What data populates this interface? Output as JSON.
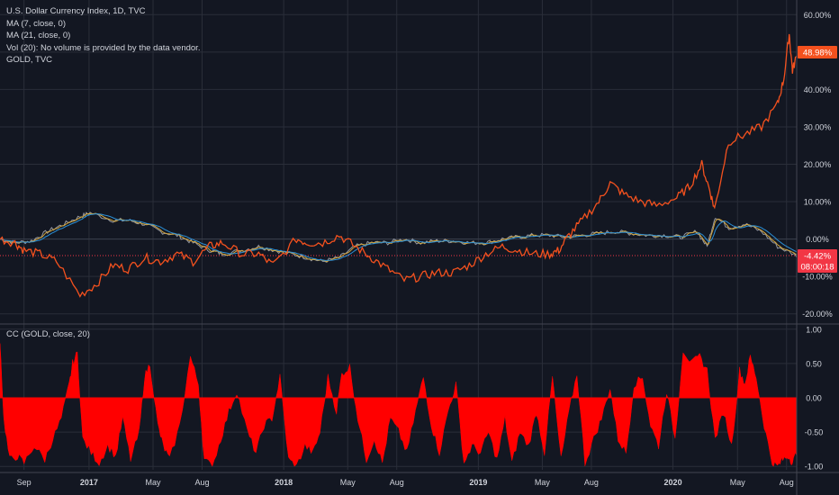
{
  "legend": {
    "symbol": "U.S. Dollar Currency Index, 1D, TVC",
    "ma7": "MA (7, close, 0)",
    "ma21": "MA (21, close, 0)",
    "vol": "Vol (20): No volume is provided by the data vendor.",
    "compare": "GOLD, TVC"
  },
  "cc_legend": "CC (GOLD, close, 20)",
  "colors": {
    "background": "#131722",
    "gold_line": "#f4511e",
    "dxy_line": "#9598a1",
    "ma7": "#d4a63a",
    "ma21": "#2b8fd6",
    "cc_fill": "#ff0000",
    "badge_gold": "#f4511e",
    "badge_dxy": "#f23645",
    "axis_text": "#d1d4dc",
    "grid": "#2a2e39"
  },
  "badges": {
    "gold_value": "48.98%",
    "dxy_value": "-4.42%",
    "countdown": "08:00:18"
  },
  "chart_data": [
    {
      "type": "line",
      "title": "U.S. Dollar Currency Index, 1D, TVC",
      "y_unit": "percent",
      "ylim": [
        -22,
        62
      ],
      "y_ticks": [
        "60.00%",
        "50.00%",
        "40.00%",
        "30.00%",
        "20.00%",
        "10.00%",
        "0.00%",
        "-10.00%",
        "-20.00%"
      ],
      "x_ticks": [
        "Sep",
        "2017",
        "May",
        "Aug",
        "2018",
        "May",
        "Aug",
        "2019",
        "May",
        "Aug",
        "2020",
        "May",
        "Aug"
      ],
      "x_range": [
        "2016-07-18",
        "2020-08-20"
      ],
      "grid": true,
      "last_values": {
        "GOLD": 48.98,
        "DXY": -4.42
      },
      "series": [
        {
          "name": "GOLD, TVC",
          "x": [
            "2016-07-18",
            "2016-08-15",
            "2016-09-01",
            "2016-10-01",
            "2016-11-01",
            "2016-12-15",
            "2017-01-15",
            "2017-02-15",
            "2017-03-15",
            "2017-04-15",
            "2017-05-15",
            "2017-06-15",
            "2017-07-15",
            "2017-08-15",
            "2017-09-08",
            "2017-10-15",
            "2017-11-15",
            "2017-12-12",
            "2018-01-25",
            "2018-02-15",
            "2018-03-15",
            "2018-04-15",
            "2018-05-15",
            "2018-06-15",
            "2018-07-15",
            "2018-08-15",
            "2018-09-15",
            "2018-10-15",
            "2018-11-15",
            "2018-12-15",
            "2019-01-15",
            "2019-02-15",
            "2019-03-15",
            "2019-04-15",
            "2019-05-15",
            "2019-06-01",
            "2019-06-20",
            "2019-07-15",
            "2019-08-15",
            "2019-09-05",
            "2019-10-01",
            "2019-11-01",
            "2019-12-01",
            "2020-01-08",
            "2020-02-01",
            "2020-02-24",
            "2020-03-10",
            "2020-03-19",
            "2020-04-14",
            "2020-05-15",
            "2020-06-15",
            "2020-07-15",
            "2020-07-27",
            "2020-08-06",
            "2020-08-12",
            "2020-08-20"
          ],
          "values": [
            0,
            -1,
            -3,
            -4,
            -6,
            -15,
            -12,
            -7,
            -8,
            -5,
            -6,
            -4,
            -6,
            -2,
            -1,
            -4,
            -4,
            -7,
            0,
            -1,
            -1,
            1,
            -2,
            -5,
            -8,
            -11,
            -10,
            -9,
            -9,
            -7,
            -4,
            -2,
            -3,
            -4,
            -4,
            -3,
            1,
            5,
            10,
            15,
            12,
            10,
            9,
            11,
            14,
            20,
            13,
            8,
            26,
            28,
            30,
            36,
            43,
            55,
            45,
            49
          ]
        },
        {
          "name": "U.S. Dollar Currency Index",
          "x": [
            "2016-07-18",
            "2016-08-15",
            "2016-09-15",
            "2016-10-15",
            "2016-11-15",
            "2016-12-15",
            "2017-01-03",
            "2017-02-15",
            "2017-03-15",
            "2017-04-15",
            "2017-05-15",
            "2017-06-15",
            "2017-07-15",
            "2017-08-15",
            "2017-09-08",
            "2017-10-15",
            "2017-11-15",
            "2017-12-15",
            "2018-01-15",
            "2018-02-15",
            "2018-03-15",
            "2018-04-15",
            "2018-05-15",
            "2018-06-15",
            "2018-07-15",
            "2018-08-15",
            "2018-09-15",
            "2018-10-15",
            "2018-11-15",
            "2018-12-15",
            "2019-01-15",
            "2019-02-15",
            "2019-03-15",
            "2019-04-15",
            "2019-05-15",
            "2019-06-15",
            "2019-07-15",
            "2019-08-15",
            "2019-09-15",
            "2019-10-15",
            "2019-11-15",
            "2019-12-15",
            "2020-01-15",
            "2020-02-15",
            "2020-03-05",
            "2020-03-20",
            "2020-04-15",
            "2020-05-15",
            "2020-06-15",
            "2020-07-15",
            "2020-08-20"
          ],
          "values": [
            0,
            -1,
            -0.5,
            2,
            4,
            6,
            7,
            5,
            5,
            4,
            2,
            1,
            -1,
            -3,
            -4,
            -3,
            -2,
            -3,
            -4,
            -5,
            -6,
            -5,
            -2,
            -1,
            -1,
            0,
            -1,
            -0.5,
            -0.5,
            -1,
            -1,
            0,
            0.5,
            1,
            1,
            0.5,
            1,
            1.5,
            2,
            1.5,
            1,
            1,
            0.5,
            2,
            -2,
            6,
            3,
            4,
            2,
            -2,
            -4.42
          ]
        }
      ]
    },
    {
      "type": "area",
      "title": "CC (GOLD, close, 20)",
      "ylim": [
        -1.05,
        1.05
      ],
      "y_ticks": [
        "1.00",
        "0.50",
        "0.00",
        "-0.50",
        "-1.00"
      ],
      "series": [
        {
          "name": "CC (GOLD, close, 20)",
          "x": [
            "2016-07-18",
            "2016-07-25",
            "2016-08-05",
            "2016-08-20",
            "2016-09-01",
            "2016-09-20",
            "2016-10-10",
            "2016-10-25",
            "2016-11-10",
            "2016-11-25",
            "2016-12-01",
            "2016-12-10",
            "2016-12-20",
            "2017-01-05",
            "2017-01-20",
            "2017-02-05",
            "2017-02-20",
            "2017-03-05",
            "2017-03-20",
            "2017-04-05",
            "2017-04-15",
            "2017-04-25",
            "2017-05-10",
            "2017-05-20",
            "2017-06-01",
            "2017-06-20",
            "2017-07-10",
            "2017-07-25",
            "2017-08-05",
            "2017-08-20",
            "2017-09-05",
            "2017-09-20",
            "2017-10-05",
            "2017-10-25",
            "2017-11-10",
            "2017-11-25",
            "2017-12-10",
            "2017-12-25",
            "2018-01-10",
            "2018-01-25",
            "2018-02-10",
            "2018-02-25",
            "2018-03-10",
            "2018-03-25",
            "2018-04-10",
            "2018-04-20",
            "2018-05-05",
            "2018-05-20",
            "2018-06-05",
            "2018-06-20",
            "2018-07-05",
            "2018-07-20",
            "2018-08-05",
            "2018-08-20",
            "2018-09-05",
            "2018-09-20",
            "2018-10-05",
            "2018-10-20",
            "2018-11-05",
            "2018-11-20",
            "2018-12-05",
            "2018-12-20",
            "2019-01-05",
            "2019-01-20",
            "2019-02-05",
            "2019-02-20",
            "2019-03-05",
            "2019-03-20",
            "2019-04-05",
            "2019-04-20",
            "2019-05-05",
            "2019-05-20",
            "2019-06-05",
            "2019-06-20",
            "2019-07-05",
            "2019-07-20",
            "2019-08-05",
            "2019-08-20",
            "2019-09-05",
            "2019-09-20",
            "2019-10-05",
            "2019-10-20",
            "2019-11-05",
            "2019-11-20",
            "2019-12-05",
            "2019-12-20",
            "2020-01-05",
            "2020-01-20",
            "2020-02-05",
            "2020-02-20",
            "2020-03-05",
            "2020-03-20",
            "2020-04-05",
            "2020-04-20",
            "2020-05-05",
            "2020-05-15",
            "2020-05-25",
            "2020-06-05",
            "2020-06-20",
            "2020-07-05",
            "2020-07-15",
            "2020-07-25",
            "2020-08-05",
            "2020-08-12",
            "2020-08-20"
          ],
          "values": [
            0.85,
            -0.3,
            -0.9,
            -0.85,
            -0.95,
            -0.7,
            -0.9,
            -0.6,
            -0.3,
            0.2,
            0.5,
            0.65,
            -0.6,
            -0.8,
            -0.95,
            -0.7,
            -0.85,
            -0.3,
            -0.9,
            -0.5,
            0.3,
            0.5,
            -0.4,
            -0.7,
            -0.9,
            -0.4,
            0.6,
            0.2,
            -0.9,
            -1.0,
            -0.6,
            -0.2,
            0.1,
            -0.5,
            -0.8,
            -0.4,
            -0.3,
            0.3,
            -0.9,
            -1.0,
            -0.7,
            -0.8,
            -0.5,
            0.3,
            -0.2,
            0.35,
            0.45,
            -0.3,
            -0.9,
            -0.6,
            -0.95,
            -0.3,
            -0.5,
            -0.8,
            -0.2,
            0.3,
            -0.4,
            -0.8,
            -0.2,
            0.2,
            -0.95,
            -0.7,
            -0.8,
            -0.5,
            -0.9,
            -0.3,
            -0.95,
            -0.5,
            -0.7,
            -0.2,
            -0.8,
            0.3,
            -0.9,
            -0.2,
            0.35,
            -0.95,
            -0.6,
            -0.3,
            0.15,
            -0.6,
            -0.8,
            0.2,
            0.3,
            -0.4,
            -0.7,
            0.1,
            -0.6,
            0.7,
            0.5,
            0.6,
            0.4,
            -0.6,
            -0.2,
            -0.7,
            0.4,
            0.2,
            0.6,
            0.3,
            -0.4,
            -0.95,
            -1.0,
            -0.9,
            -0.85,
            -0.95,
            -0.8
          ]
        }
      ]
    }
  ]
}
